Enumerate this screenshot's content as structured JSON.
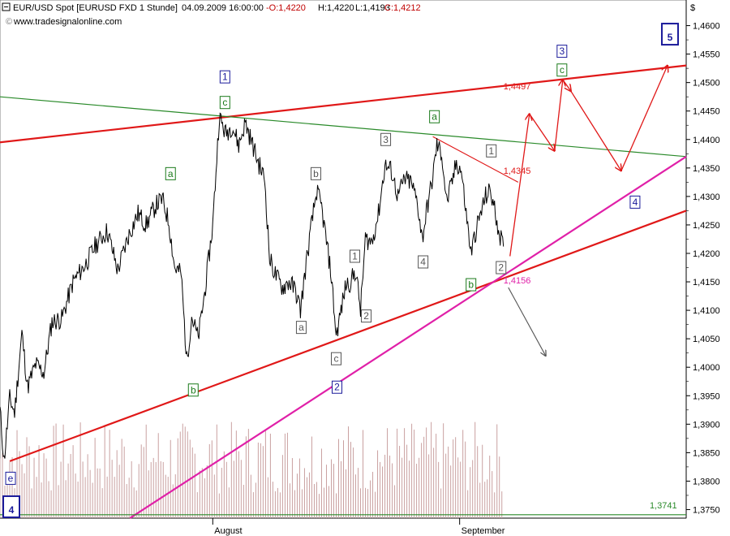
{
  "header": {
    "symbol": "EUR/USD Spot [EURUSD FXD  1 Stunde]",
    "datetime": "04.09.2009 16:00:00",
    "open": "-O:1,4220",
    "high": "H:1,4220",
    "low": "L:1,4193",
    "close": "C:1,4212",
    "website": "www.tradesignalonline.com",
    "currency_symbol": "$"
  },
  "chart_data": {
    "type": "line",
    "title": "EUR/USD Spot [EURUSD FXD  1 Stunde]",
    "x_tick_labels": [
      "August",
      "September"
    ],
    "y_tick_labels": [
      "1,4600",
      "1,4550",
      "1,4500",
      "1,4450",
      "1,4400",
      "1,4350",
      "1,4300",
      "1,4250",
      "1,4200",
      "1,4150",
      "1,4100",
      "1,4050",
      "1,4000",
      "1,3950",
      "1,3900",
      "1,3850",
      "1,3800",
      "1,3750"
    ],
    "ylim": [
      1.3735,
      1.4645
    ],
    "grid": false,
    "price_path": [
      {
        "bar": 0,
        "price": 1.3925
      },
      {
        "bar": 5,
        "price": 1.3835
      },
      {
        "bar": 12,
        "price": 1.3945
      },
      {
        "bar": 18,
        "price": 1.392
      },
      {
        "bar": 27,
        "price": 1.406
      },
      {
        "bar": 34,
        "price": 1.3965
      },
      {
        "bar": 44,
        "price": 1.4005
      },
      {
        "bar": 54,
        "price": 1.399
      },
      {
        "bar": 64,
        "price": 1.408
      },
      {
        "bar": 76,
        "price": 1.4085
      },
      {
        "bar": 90,
        "price": 1.415
      },
      {
        "bar": 105,
        "price": 1.418
      },
      {
        "bar": 118,
        "price": 1.4215
      },
      {
        "bar": 132,
        "price": 1.424
      },
      {
        "bar": 145,
        "price": 1.417
      },
      {
        "bar": 158,
        "price": 1.423
      },
      {
        "bar": 170,
        "price": 1.427
      },
      {
        "bar": 180,
        "price": 1.425
      },
      {
        "bar": 192,
        "price": 1.4285
      },
      {
        "bar": 200,
        "price": 1.4295
      },
      {
        "bar": 208,
        "price": 1.4255
      },
      {
        "bar": 215,
        "price": 1.4175
      },
      {
        "bar": 223,
        "price": 1.4165
      },
      {
        "bar": 230,
        "price": 1.401
      },
      {
        "bar": 236,
        "price": 1.409
      },
      {
        "bar": 244,
        "price": 1.405
      },
      {
        "bar": 252,
        "price": 1.413
      },
      {
        "bar": 262,
        "price": 1.425
      },
      {
        "bar": 270,
        "price": 1.444
      },
      {
        "bar": 278,
        "price": 1.441
      },
      {
        "bar": 286,
        "price": 1.4425
      },
      {
        "bar": 294,
        "price": 1.439
      },
      {
        "bar": 302,
        "price": 1.443
      },
      {
        "bar": 310,
        "price": 1.4395
      },
      {
        "bar": 318,
        "price": 1.436
      },
      {
        "bar": 326,
        "price": 1.433
      },
      {
        "bar": 332,
        "price": 1.419
      },
      {
        "bar": 340,
        "price": 1.416
      },
      {
        "bar": 348,
        "price": 1.414
      },
      {
        "bar": 356,
        "price": 1.415
      },
      {
        "bar": 364,
        "price": 1.4135
      },
      {
        "bar": 370,
        "price": 1.41
      },
      {
        "bar": 376,
        "price": 1.417
      },
      {
        "bar": 383,
        "price": 1.4245
      },
      {
        "bar": 390,
        "price": 1.431
      },
      {
        "bar": 396,
        "price": 1.428
      },
      {
        "bar": 402,
        "price": 1.422
      },
      {
        "bar": 408,
        "price": 1.416
      },
      {
        "bar": 414,
        "price": 1.4055
      },
      {
        "bar": 420,
        "price": 1.41
      },
      {
        "bar": 426,
        "price": 1.4145
      },
      {
        "bar": 432,
        "price": 1.415
      },
      {
        "bar": 438,
        "price": 1.417
      },
      {
        "bar": 444,
        "price": 1.41
      },
      {
        "bar": 450,
        "price": 1.4225
      },
      {
        "bar": 458,
        "price": 1.422
      },
      {
        "bar": 466,
        "price": 1.427
      },
      {
        "bar": 474,
        "price": 1.4355
      },
      {
        "bar": 482,
        "price": 1.4345
      },
      {
        "bar": 490,
        "price": 1.43
      },
      {
        "bar": 498,
        "price": 1.433
      },
      {
        "bar": 506,
        "price": 1.4325
      },
      {
        "bar": 514,
        "price": 1.429
      },
      {
        "bar": 520,
        "price": 1.4225
      },
      {
        "bar": 526,
        "price": 1.428
      },
      {
        "bar": 532,
        "price": 1.4325
      },
      {
        "bar": 538,
        "price": 1.439
      },
      {
        "bar": 544,
        "price": 1.4375
      },
      {
        "bar": 550,
        "price": 1.429
      },
      {
        "bar": 556,
        "price": 1.432
      },
      {
        "bar": 562,
        "price": 1.436
      },
      {
        "bar": 568,
        "price": 1.4345
      },
      {
        "bar": 574,
        "price": 1.427
      },
      {
        "bar": 580,
        "price": 1.42
      },
      {
        "bar": 586,
        "price": 1.424
      },
      {
        "bar": 592,
        "price": 1.427
      },
      {
        "bar": 598,
        "price": 1.43
      },
      {
        "bar": 604,
        "price": 1.431
      },
      {
        "bar": 610,
        "price": 1.427
      },
      {
        "bar": 616,
        "price": 1.423
      },
      {
        "bar": 620,
        "price": 1.4212
      }
    ],
    "trend_lines": [
      {
        "name": "upper-red-trendline",
        "color": "#e01818",
        "points": [
          {
            "bar": 0,
            "price": 1.4395
          },
          {
            "bar": 845,
            "price": 1.453
          }
        ]
      },
      {
        "name": "lower-red-trendline",
        "color": "#e01818",
        "points": [
          {
            "bar": 12,
            "price": 1.3835
          },
          {
            "bar": 845,
            "price": 1.4275
          }
        ]
      },
      {
        "name": "green-trendline",
        "color": "#2a8a2a",
        "points": [
          {
            "bar": 0,
            "price": 1.4475
          },
          {
            "bar": 845,
            "price": 1.437
          }
        ]
      },
      {
        "name": "magenta-trendline",
        "color": "#e020a8",
        "points": [
          {
            "bar": 160,
            "price": 1.3735
          },
          {
            "bar": 845,
            "price": 1.437
          }
        ]
      },
      {
        "name": "thin-red-line",
        "color": "#e01818",
        "points": [
          {
            "bar": 533,
            "price": 1.4405
          },
          {
            "bar": 638,
            "price": 1.4325
          }
        ]
      },
      {
        "name": "baseline-green",
        "color": "#2a8a2a",
        "points": [
          {
            "bar": 0,
            "price": 1.3741
          },
          {
            "bar": 845,
            "price": 1.3741
          }
        ]
      }
    ],
    "price_labels": [
      {
        "text": "1,4497",
        "bar": 620,
        "price": 1.4488,
        "color": "#e01818"
      },
      {
        "text": "1,4345",
        "bar": 620,
        "price": 1.434,
        "color": "#e01818"
      },
      {
        "text": "1,4156",
        "bar": 620,
        "price": 1.4147,
        "color": "#e020a8"
      },
      {
        "text": "1,3741",
        "bar": 800,
        "price": 1.3752,
        "color": "#2a8a2a"
      }
    ],
    "wave_labels": [
      {
        "text": "e",
        "bar": 13,
        "price": 1.3805,
        "color": "#1a1a9a"
      },
      {
        "text": "4",
        "bar": 14,
        "price": 1.3755,
        "color": "#1a1a9a",
        "big": true
      },
      {
        "text": "b",
        "bar": 238,
        "price": 1.396,
        "color": "#1a7a1a"
      },
      {
        "text": "a",
        "bar": 210,
        "price": 1.434,
        "color": "#1a7a1a"
      },
      {
        "text": "1",
        "bar": 277,
        "price": 1.451,
        "color": "#1a1a9a"
      },
      {
        "text": "c",
        "bar": 277,
        "price": 1.4465,
        "color": "#1a7a1a"
      },
      {
        "text": "b",
        "bar": 389,
        "price": 1.434,
        "color": "#555555"
      },
      {
        "text": "a",
        "bar": 371,
        "price": 1.407,
        "color": "#555555"
      },
      {
        "text": "c",
        "bar": 414,
        "price": 1.4015,
        "color": "#555555"
      },
      {
        "text": "2",
        "bar": 415,
        "price": 1.3965,
        "color": "#1a1a9a"
      },
      {
        "text": "1",
        "bar": 437,
        "price": 1.4195,
        "color": "#555555"
      },
      {
        "text": "2",
        "bar": 451,
        "price": 1.409,
        "color": "#555555"
      },
      {
        "text": "3",
        "bar": 475,
        "price": 1.44,
        "color": "#555555"
      },
      {
        "text": "4",
        "bar": 521,
        "price": 1.4185,
        "color": "#555555"
      },
      {
        "text": "a",
        "bar": 535,
        "price": 1.444,
        "color": "#1a7a1a"
      },
      {
        "text": "1",
        "bar": 605,
        "price": 1.438,
        "color": "#555555"
      },
      {
        "text": "2",
        "bar": 617,
        "price": 1.4175,
        "color": "#555555"
      },
      {
        "text": "b",
        "bar": 580,
        "price": 1.4145,
        "color": "#1a7a1a"
      },
      {
        "text": "3",
        "bar": 692,
        "price": 1.4555,
        "color": "#1a1a9a"
      },
      {
        "text": "c",
        "bar": 692,
        "price": 1.4522,
        "color": "#1a7a1a"
      },
      {
        "text": "4",
        "bar": 782,
        "price": 1.429,
        "color": "#1a1a9a"
      },
      {
        "text": "5",
        "bar": 825,
        "price": 1.4585,
        "color": "#1a1a9a",
        "big": true
      }
    ],
    "forecast_path": {
      "color": "#e01818",
      "points": [
        {
          "bar": 628,
          "price": 1.4195
        },
        {
          "bar": 652,
          "price": 1.4445
        },
        {
          "bar": 683,
          "price": 1.438
        },
        {
          "bar": 693,
          "price": 1.4505
        },
        {
          "bar": 703,
          "price": 1.4485
        },
        {
          "bar": 765,
          "price": 1.4345
        },
        {
          "bar": 822,
          "price": 1.453
        }
      ]
    },
    "alternative_arrow": {
      "color": "#555555",
      "points": [
        {
          "bar": 626,
          "price": 1.414
        },
        {
          "bar": 672,
          "price": 1.402
        }
      ]
    },
    "volume": {
      "color": "#c9a0a0",
      "bars_from": 0,
      "bars_to": 620,
      "max_level": 1.3905,
      "base_level": 1.3735
    }
  }
}
